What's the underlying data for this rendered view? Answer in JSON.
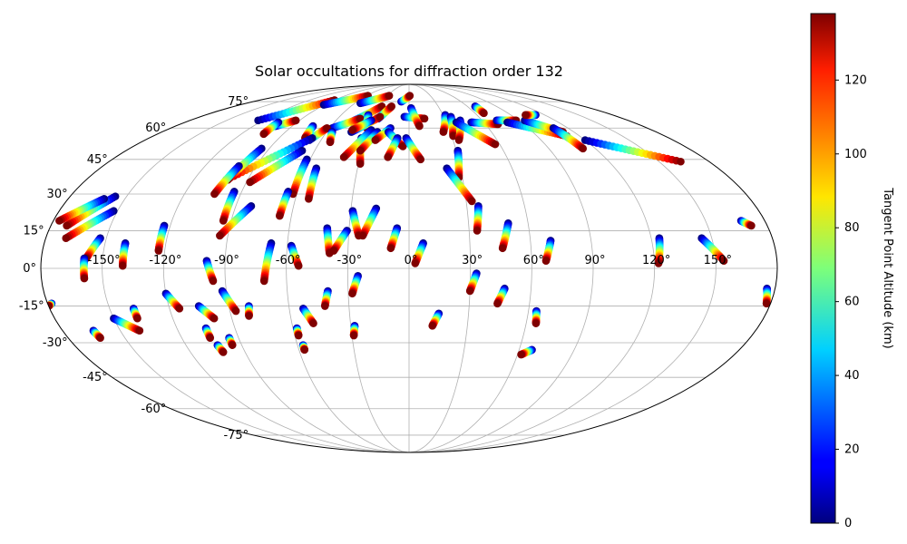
{
  "chart_data": {
    "type": "scatter",
    "projection": "mollweide",
    "title": "Solar occultations for diffraction order 132",
    "grid": true,
    "lon_ticks": [
      {
        "value": -150,
        "label": "-150°"
      },
      {
        "value": -120,
        "label": "-120°"
      },
      {
        "value": -90,
        "label": "-90°"
      },
      {
        "value": -60,
        "label": "-60°"
      },
      {
        "value": -30,
        "label": "-30°"
      },
      {
        "value": 0,
        "label": "0°"
      },
      {
        "value": 30,
        "label": "30°"
      },
      {
        "value": 60,
        "label": "60°"
      },
      {
        "value": 90,
        "label": "90°"
      },
      {
        "value": 120,
        "label": "120°"
      },
      {
        "value": 150,
        "label": "150°"
      }
    ],
    "lat_ticks": [
      {
        "value": 75,
        "label": "75°"
      },
      {
        "value": 60,
        "label": "60°"
      },
      {
        "value": 45,
        "label": "45°"
      },
      {
        "value": 30,
        "label": "30°"
      },
      {
        "value": 15,
        "label": "15°"
      },
      {
        "value": 0,
        "label": "0°"
      },
      {
        "value": -15,
        "label": "-15°"
      },
      {
        "value": -30,
        "label": "-30°"
      },
      {
        "value": -45,
        "label": "-45°"
      },
      {
        "value": -60,
        "label": "-60°"
      },
      {
        "value": -75,
        "label": "-75°"
      }
    ],
    "colorbar": {
      "label": "Tangent Point Altitude (km)",
      "colormap": "jet",
      "min": 0,
      "max": 138,
      "ticks": [
        {
          "value": 0,
          "label": "0"
        },
        {
          "value": 20,
          "label": "20"
        },
        {
          "value": 40,
          "label": "40"
        },
        {
          "value": 60,
          "label": "60"
        },
        {
          "value": 80,
          "label": "80"
        },
        {
          "value": 100,
          "label": "100"
        },
        {
          "value": 120,
          "label": "120"
        }
      ]
    },
    "tracks": [
      {
        "lon0": -124,
        "lat0": 64,
        "lon1": -90,
        "lat1": 76
      },
      {
        "lon0": -91,
        "lat0": 73,
        "lon1": -58,
        "lat1": 79
      },
      {
        "lon0": -54,
        "lat0": 74,
        "lon1": -28,
        "lat1": 79
      },
      {
        "lon0": -47,
        "lat0": 63,
        "lon1": -28,
        "lat1": 72
      },
      {
        "lon0": -26,
        "lat0": 65,
        "lon1": -18,
        "lat1": 72
      },
      {
        "lon0": -9,
        "lat0": 75,
        "lon1": 1,
        "lat1": 79
      },
      {
        "lon0": -4,
        "lat0": 66,
        "lon1": 13,
        "lat1": 65
      },
      {
        "lon0": 2,
        "lat0": 71,
        "lon1": 8,
        "lat1": 61
      },
      {
        "lon0": -58,
        "lat0": 60,
        "lon1": -41,
        "lat1": 65
      },
      {
        "lon0": -36,
        "lat0": 67,
        "lon1": -32,
        "lat1": 60
      },
      {
        "lon0": -68,
        "lat0": 54,
        "lon1": -62,
        "lat1": 60
      },
      {
        "lon0": -74,
        "lat0": 61,
        "lon1": -72,
        "lat1": 55
      },
      {
        "lon0": -56,
        "lat0": 58,
        "lon1": -53,
        "lat1": 53
      },
      {
        "lon0": -42,
        "lat0": 58,
        "lon1": -25,
        "lat1": 66
      },
      {
        "lon0": -31,
        "lat0": 64,
        "lon1": -42,
        "lat1": 59
      },
      {
        "lon0": -103,
        "lat0": 61,
        "lon1": -93,
        "lat1": 64
      },
      {
        "lon0": -105,
        "lat0": 63,
        "lon1": -104,
        "lat1": 57
      },
      {
        "lon0": -67,
        "lat0": 55,
        "lon1": -102,
        "lat1": 36
      },
      {
        "lon0": -68,
        "lat0": 49,
        "lon1": -88,
        "lat1": 35
      },
      {
        "lon0": -62,
        "lat0": 45,
        "lon1": -62,
        "lat1": 30
      },
      {
        "lon0": -95,
        "lat0": 50,
        "lon1": -101,
        "lat1": 36
      },
      {
        "lon0": -100,
        "lat0": 42,
        "lon1": -104,
        "lat1": 30
      },
      {
        "lon0": -94,
        "lat0": 31,
        "lon1": -94,
        "lat1": 19
      },
      {
        "lon0": -65,
        "lat0": 31,
        "lon1": -66,
        "lat1": 21
      },
      {
        "lon0": -54,
        "lat0": 41,
        "lon1": -53,
        "lat1": 28
      },
      {
        "lon0": -33,
        "lat0": 55,
        "lon1": -29,
        "lat1": 43
      },
      {
        "lon0": -28,
        "lat0": 59,
        "lon1": -40,
        "lat1": 46
      },
      {
        "lon0": -23,
        "lat0": 58,
        "lon1": -31,
        "lat1": 49
      },
      {
        "lon0": -14,
        "lat0": 60,
        "lon1": -23,
        "lat1": 54
      },
      {
        "lon0": -15,
        "lat0": 58,
        "lon1": -4,
        "lat1": 51
      },
      {
        "lon0": -8,
        "lat0": 55,
        "lon1": -13,
        "lat1": 46
      },
      {
        "lon0": -2,
        "lat0": 55,
        "lon1": 7,
        "lat1": 45
      },
      {
        "lon0": 32,
        "lat0": 67,
        "lon1": 25,
        "lat1": 58
      },
      {
        "lon0": 36,
        "lat0": 66,
        "lon1": 31,
        "lat1": 56
      },
      {
        "lon0": 31,
        "lat0": 49,
        "lon1": 28,
        "lat1": 37
      },
      {
        "lon0": 22,
        "lat0": 41,
        "lon1": 33,
        "lat1": 27
      },
      {
        "lon0": 42,
        "lat0": 64,
        "lon1": 34,
        "lat1": 54
      },
      {
        "lon0": 38,
        "lat0": 63,
        "lon1": 57,
        "lat1": 52
      },
      {
        "lon0": 50,
        "lat0": 63,
        "lon1": 70,
        "lat1": 62
      },
      {
        "lon0": 72,
        "lat0": 64,
        "lon1": 88,
        "lat1": 64
      },
      {
        "lon0": 79,
        "lat0": 63,
        "lon1": 111,
        "lat1": 56
      },
      {
        "lon0": 95,
        "lat0": 64,
        "lon1": 112,
        "lat1": 58
      },
      {
        "lon0": 112,
        "lat0": 67,
        "lon1": 103,
        "lat1": 67
      },
      {
        "lon0": 109,
        "lat0": 60,
        "lon1": 112,
        "lat1": 50
      },
      {
        "lon0": 120,
        "lat0": 54,
        "lon1": 163,
        "lat1": 44
      },
      {
        "lon0": 68,
        "lat0": 72,
        "lon1": 68,
        "lat1": 68
      },
      {
        "lon0": -123,
        "lat0": 17,
        "lon1": -123,
        "lat1": 7
      },
      {
        "lon0": -140,
        "lat0": 10,
        "lon1": -140,
        "lat1": 1
      },
      {
        "lon0": -153,
        "lat0": 12,
        "lon1": -158,
        "lat1": 4
      },
      {
        "lon0": -159,
        "lat0": 4,
        "lon1": -159,
        "lat1": -4
      },
      {
        "lon0": -152,
        "lat0": 23,
        "lon1": -170,
        "lat1": 12
      },
      {
        "lon0": -156,
        "lat0": 29,
        "lon1": -172,
        "lat1": 17
      },
      {
        "lon0": -161,
        "lat0": 28,
        "lon1": -177,
        "lat1": 19
      },
      {
        "lon0": -82,
        "lat0": 25,
        "lon1": -94,
        "lat1": 13
      },
      {
        "lon0": -68,
        "lat0": 10,
        "lon1": -71,
        "lat1": -5
      },
      {
        "lon0": -58,
        "lat0": 9,
        "lon1": -54,
        "lat1": 1
      },
      {
        "lon0": -41,
        "lat0": 16,
        "lon1": -39,
        "lat1": 6
      },
      {
        "lon0": -31,
        "lat0": 15,
        "lon1": -37,
        "lat1": 7
      },
      {
        "lon0": -29,
        "lat0": 23,
        "lon1": -25,
        "lat1": 13
      },
      {
        "lon0": -17,
        "lat0": 24,
        "lon1": -23,
        "lat1": 13
      },
      {
        "lon0": -6,
        "lat0": 16,
        "lon1": -9,
        "lat1": 8
      },
      {
        "lon0": 7,
        "lat0": 10,
        "lon1": 3,
        "lat1": 2
      },
      {
        "lon0": 36,
        "lat0": 25,
        "lon1": 34,
        "lat1": 15
      },
      {
        "lon0": 50,
        "lat0": 18,
        "lon1": 46,
        "lat1": 8
      },
      {
        "lon0": 70,
        "lat0": 11,
        "lon1": 67,
        "lat1": 3
      },
      {
        "lon0": 124,
        "lat0": 12,
        "lon1": 122,
        "lat1": 2
      },
      {
        "lon0": 145,
        "lat0": 12,
        "lon1": 154,
        "lat1": 3
      },
      {
        "lon0": 168,
        "lat0": 19,
        "lon1": 172,
        "lat1": 17
      },
      {
        "lon0": -99,
        "lat0": 3,
        "lon1": -96,
        "lat1": -5
      },
      {
        "lon0": -92,
        "lat0": -9,
        "lon1": -87,
        "lat1": -17
      },
      {
        "lon0": -120,
        "lat0": -10,
        "lon1": -115,
        "lat1": -16
      },
      {
        "lon0": -105,
        "lat0": -15,
        "lon1": -99,
        "lat1": -20
      },
      {
        "lon0": -80,
        "lat0": -15,
        "lon1": -81,
        "lat1": -19
      },
      {
        "lon0": -138,
        "lat0": -16,
        "lon1": -138,
        "lat1": -20
      },
      {
        "lon0": -150,
        "lat0": -20,
        "lon1": -140,
        "lat1": -25
      },
      {
        "lon0": -164,
        "lat0": -25,
        "lon1": -163,
        "lat1": -28
      },
      {
        "lon0": -105,
        "lat0": -24,
        "lon1": -105,
        "lat1": -28
      },
      {
        "lon0": -103,
        "lat0": -31,
        "lon1": -102,
        "lat1": -34
      },
      {
        "lon0": -95,
        "lat0": -28,
        "lon1": -95,
        "lat1": -31
      },
      {
        "lon0": -58,
        "lat0": -24,
        "lon1": -58,
        "lat1": -27
      },
      {
        "lon0": -57,
        "lat0": -31,
        "lon1": -57,
        "lat1": -33
      },
      {
        "lon0": -53,
        "lat0": -16,
        "lon1": -49,
        "lat1": -22
      },
      {
        "lon0": -40,
        "lat0": -9,
        "lon1": -42,
        "lat1": -15
      },
      {
        "lon0": -25,
        "lat0": -3,
        "lon1": -28,
        "lat1": -10
      },
      {
        "lon0": -28,
        "lat0": -23,
        "lon1": -29,
        "lat1": -27
      },
      {
        "lon0": 15,
        "lat0": -18,
        "lon1": 12,
        "lat1": -23
      },
      {
        "lon0": 33,
        "lat0": -2,
        "lon1": 30,
        "lat1": -9
      },
      {
        "lon0": 47,
        "lat0": -8,
        "lon1": 44,
        "lat1": -14
      },
      {
        "lon0": 64,
        "lat0": -17,
        "lon1": 65,
        "lat1": -22
      },
      {
        "lon0": 67,
        "lat0": -33,
        "lon1": 62,
        "lat1": -35
      },
      {
        "lon0": 176,
        "lat0": -8,
        "lon1": 178,
        "lat1": -14
      },
      {
        "lon0": -178,
        "lat0": -14,
        "lon1": -180,
        "lat1": -15
      }
    ]
  }
}
